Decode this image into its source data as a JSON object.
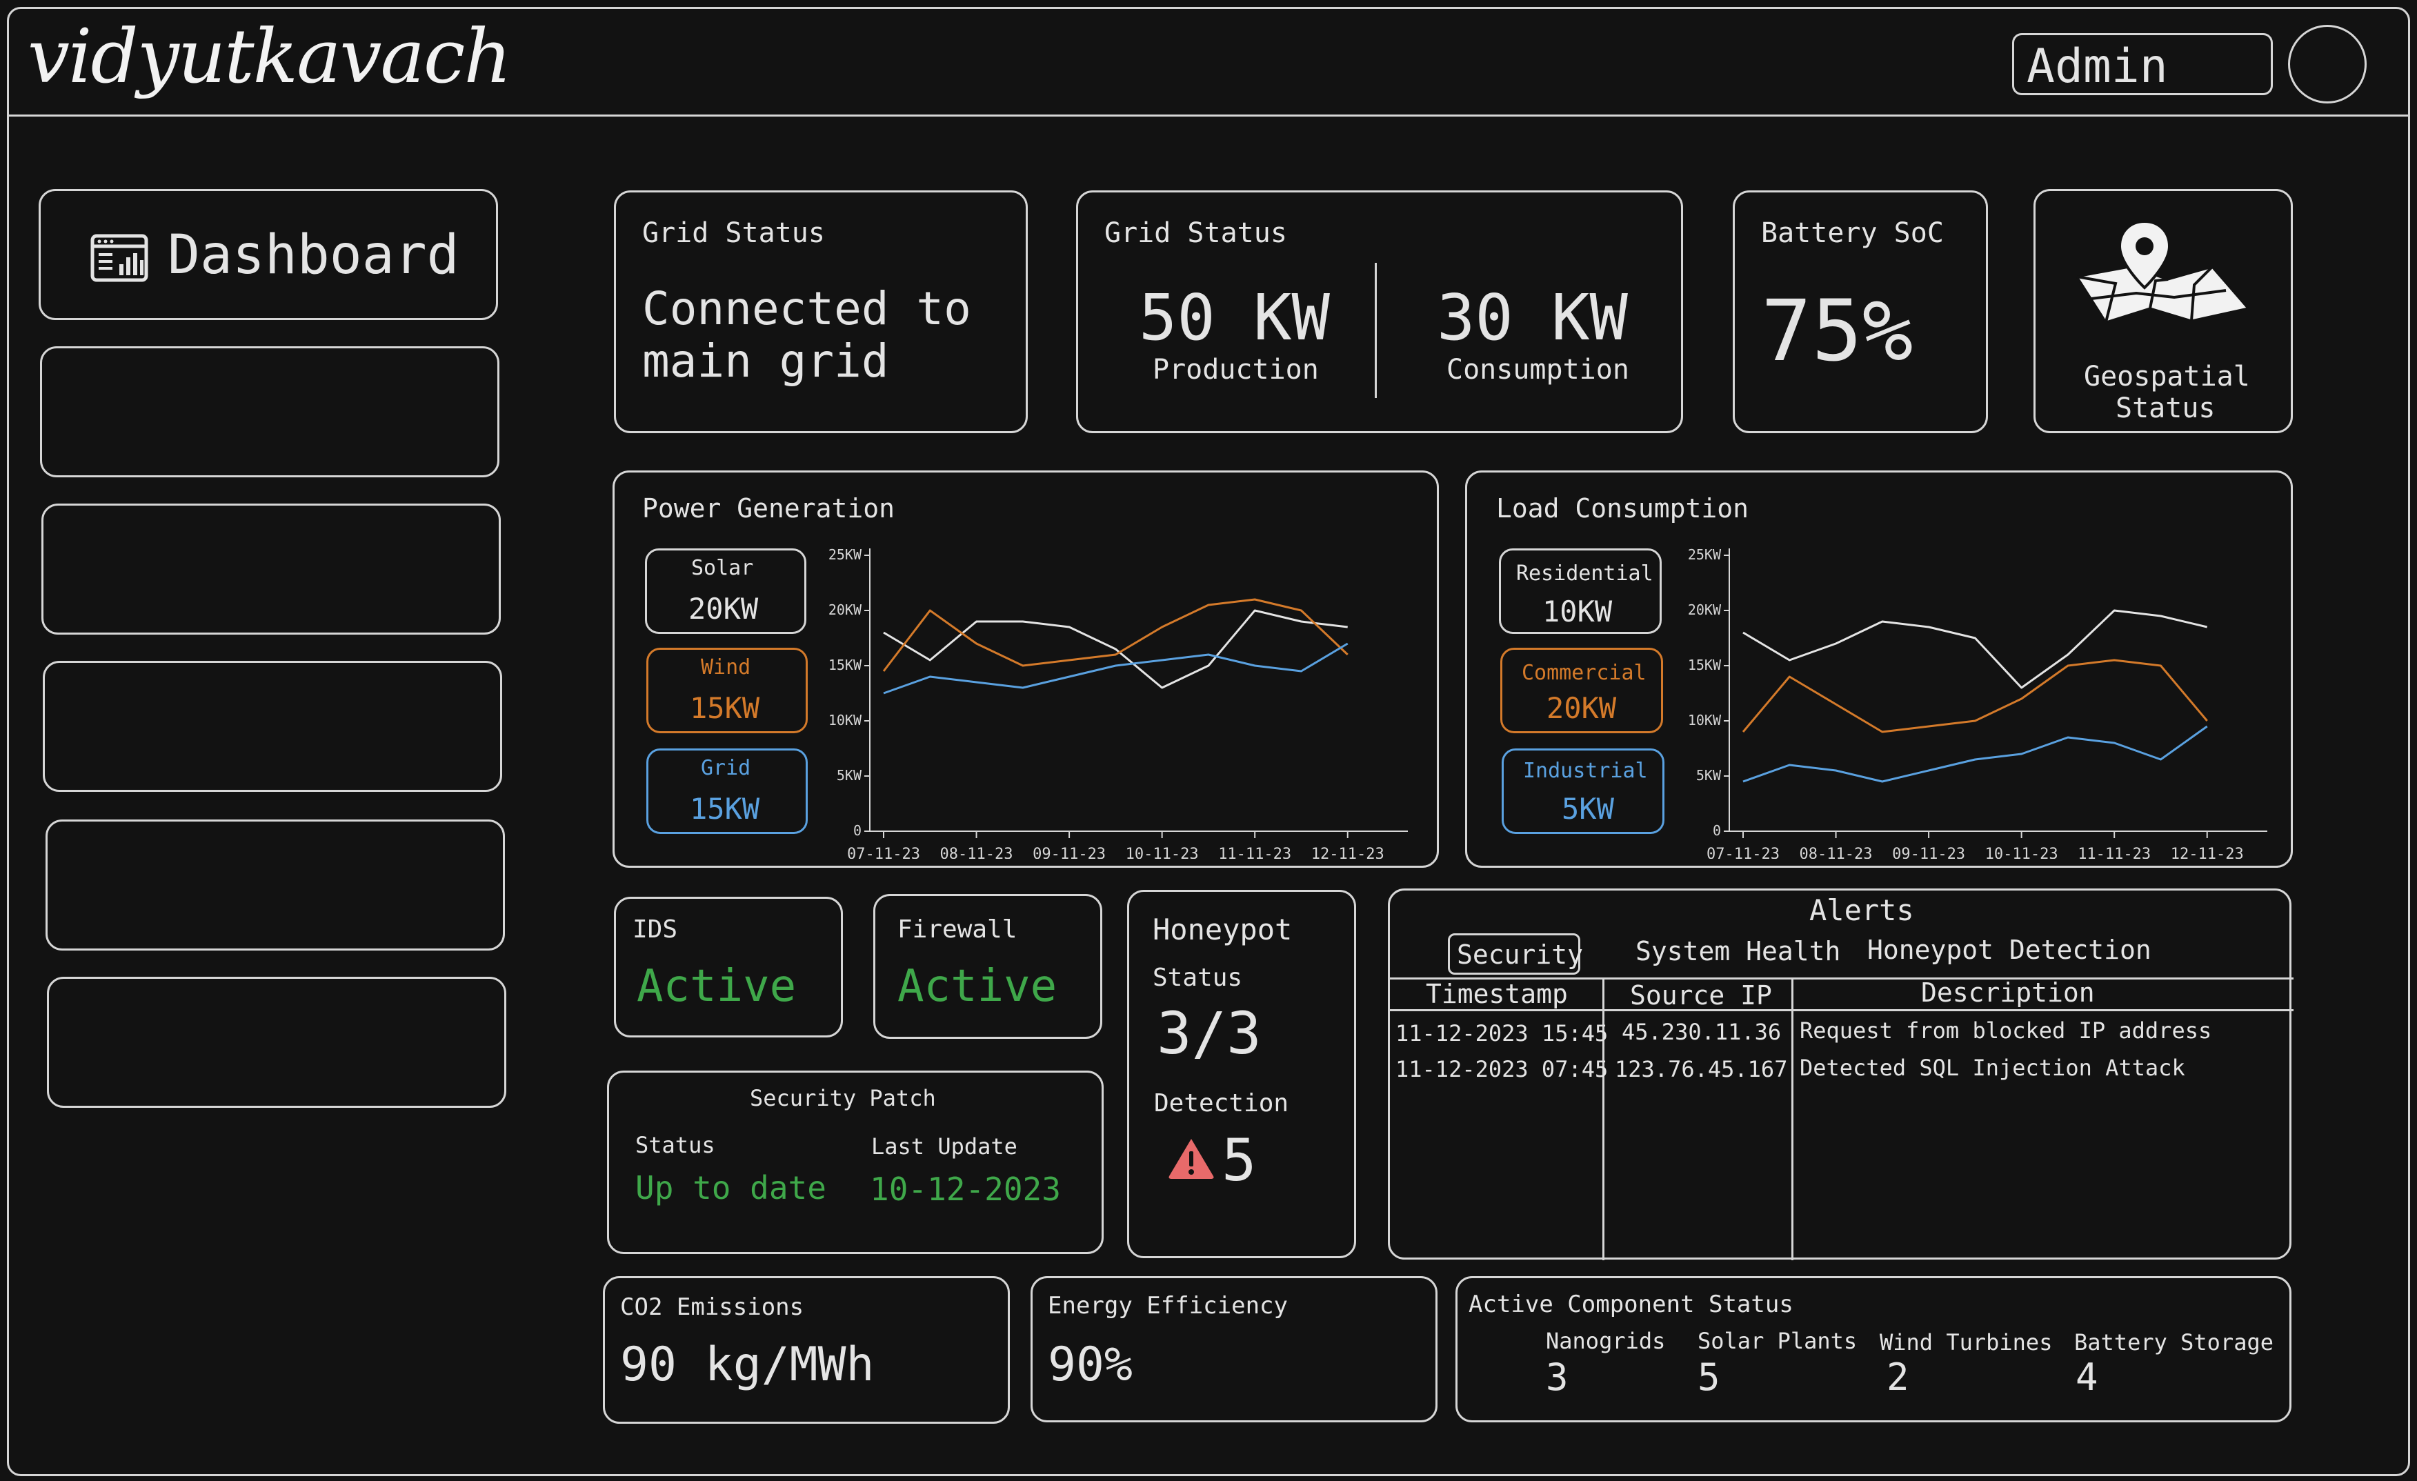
{
  "header": {
    "logo": "vidyutkavach",
    "user": "Admin"
  },
  "sidebar": {
    "items": [
      {
        "label": "Dashboard",
        "icon": "dashboard-icon"
      },
      {
        "label": ""
      },
      {
        "label": ""
      },
      {
        "label": ""
      },
      {
        "label": ""
      },
      {
        "label": ""
      }
    ]
  },
  "grid_status": {
    "title": "Grid Status",
    "line1": "Connected to",
    "line2": "main grid"
  },
  "grid_power": {
    "title": "Grid Status",
    "production_value": "50 KW",
    "production_label": "Production",
    "consumption_value": "30 KW",
    "consumption_label": "Consumption"
  },
  "battery": {
    "title": "Battery SoC",
    "value": "75%"
  },
  "geo": {
    "line1": "Geospatial",
    "line2": "Status",
    "icon": "map-pin-icon"
  },
  "power_generation": {
    "title": "Power Generation",
    "legend": [
      {
        "name": "Solar",
        "value": "20KW",
        "color": "#e4e4e4"
      },
      {
        "name": "Wind",
        "value": "15KW",
        "color": "#d47a2a"
      },
      {
        "name": "Grid",
        "value": "15KW",
        "color": "#5aa1e0"
      }
    ]
  },
  "load_consumption": {
    "title": "Load Consumption",
    "legend": [
      {
        "name": "Residential",
        "value": "10KW",
        "color": "#e4e4e4"
      },
      {
        "name": "Commercial",
        "value": "20KW",
        "color": "#d47a2a"
      },
      {
        "name": "Industrial",
        "value": "5KW",
        "color": "#5aa1e0"
      }
    ]
  },
  "ids": {
    "title": "IDS",
    "status": "Active"
  },
  "firewall": {
    "title": "Firewall",
    "status": "Active"
  },
  "honeypot": {
    "title": "Honeypot",
    "status_label": "Status",
    "status_value": "3/3",
    "detection_label": "Detection",
    "detection_value": "5",
    "icon": "warning-icon"
  },
  "security_patch": {
    "title": "Security Patch",
    "status_label": "Status",
    "status_value": "Up to date",
    "update_label": "Last Update",
    "update_value": "10-12-2023"
  },
  "alerts": {
    "title": "Alerts",
    "tabs": [
      "Security",
      "System Health",
      "Honeypot Detection"
    ],
    "active_tab": 0,
    "columns": [
      "Timestamp",
      "Source IP",
      "Description"
    ],
    "rows": [
      [
        "11-12-2023 15:45",
        "45.230.11.36",
        "Request from blocked IP address"
      ],
      [
        "11-12-2023 07:45",
        "123.76.45.167",
        "Detected SQL Injection Attack"
      ]
    ]
  },
  "co2": {
    "title": "CO2 Emissions",
    "value": "90 kg/MWh"
  },
  "efficiency": {
    "title": "Energy Efficiency",
    "value": "90%"
  },
  "components": {
    "title": "Active Component Status",
    "items": [
      {
        "label": "Nanogrids",
        "value": "3"
      },
      {
        "label": "Solar Plants",
        "value": "5"
      },
      {
        "label": "Wind Turbines",
        "value": "2"
      },
      {
        "label": "Battery Storage",
        "value": "4"
      }
    ]
  },
  "colors": {
    "background": "#121212",
    "stroke": "#d6d6d6",
    "text": "#e4e4e4",
    "green": "#3fa84a",
    "orange": "#d47a2a",
    "blue": "#5aa1e0",
    "alert_red": "#e86a6a"
  },
  "chart_data": [
    {
      "type": "line",
      "title": "Power Generation",
      "categories": [
        "07-11-23",
        "08-11-23",
        "09-11-23",
        "10-11-23",
        "11-11-23",
        "12-11-23"
      ],
      "y_ticks": [
        "0",
        "5KW",
        "10KW",
        "15KW",
        "20KW",
        "25KW"
      ],
      "ylim": [
        0,
        25
      ],
      "x": [
        0,
        0.5,
        1,
        1.5,
        2,
        2.5,
        3,
        3.5,
        4,
        4.5,
        5
      ],
      "series": [
        {
          "name": "Solar",
          "color": "#e4e4e4",
          "values": [
            18,
            15.5,
            19,
            19,
            18.5,
            16.5,
            13,
            15,
            20,
            19,
            18.5
          ]
        },
        {
          "name": "Wind",
          "color": "#d47a2a",
          "values": [
            14.5,
            20,
            17,
            15,
            15.5,
            16,
            18.5,
            20.5,
            21,
            20,
            16
          ]
        },
        {
          "name": "Grid",
          "color": "#5aa1e0",
          "values": [
            12.5,
            14,
            13.5,
            13,
            14,
            15,
            15.5,
            16,
            15,
            14.5,
            17
          ]
        }
      ]
    },
    {
      "type": "line",
      "title": "Load Consumption",
      "categories": [
        "07-11-23",
        "08-11-23",
        "09-11-23",
        "10-11-23",
        "11-11-23",
        "12-11-23"
      ],
      "y_ticks": [
        "0",
        "5KW",
        "10KW",
        "15KW",
        "20KW",
        "25KW"
      ],
      "ylim": [
        0,
        25
      ],
      "x": [
        0,
        0.5,
        1,
        1.5,
        2,
        2.5,
        3,
        3.5,
        4,
        4.5,
        5
      ],
      "series": [
        {
          "name": "Residential",
          "color": "#e4e4e4",
          "values": [
            18,
            15.5,
            17,
            19,
            18.5,
            17.5,
            13,
            16,
            20,
            19.5,
            18.5
          ]
        },
        {
          "name": "Commercial",
          "color": "#d47a2a",
          "values": [
            9,
            14,
            11.5,
            9,
            9.5,
            10,
            12,
            15,
            15.5,
            15,
            10
          ]
        },
        {
          "name": "Industrial",
          "color": "#5aa1e0",
          "values": [
            4.5,
            6,
            5.5,
            4.5,
            5.5,
            6.5,
            7,
            8.5,
            8,
            6.5,
            9.5
          ]
        }
      ]
    }
  ]
}
